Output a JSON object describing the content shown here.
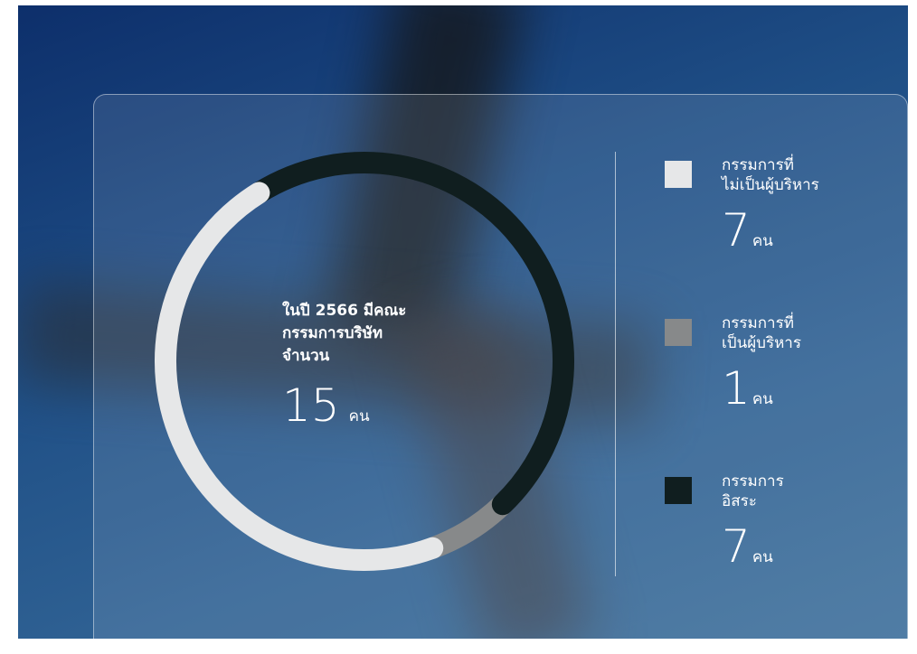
{
  "chart_data": {
    "type": "donut",
    "title": "ในปี 2566 มีคณะ\nกรรมการบริษัท\nจำนวน",
    "total": 15,
    "unit": "คน",
    "series": [
      {
        "name": "กรรมการที่\nไม่เป็นผู้บริหาร",
        "color": "#e6e7e8",
        "values": [
          7
        ]
      },
      {
        "name": "กรรมการที่\nเป็นผู้บริหาร",
        "color": "#87898a",
        "values": [
          1
        ]
      },
      {
        "name": "กรรมการ\nอิสระ",
        "color": "#101e1f",
        "values": [
          7
        ]
      }
    ]
  }
}
